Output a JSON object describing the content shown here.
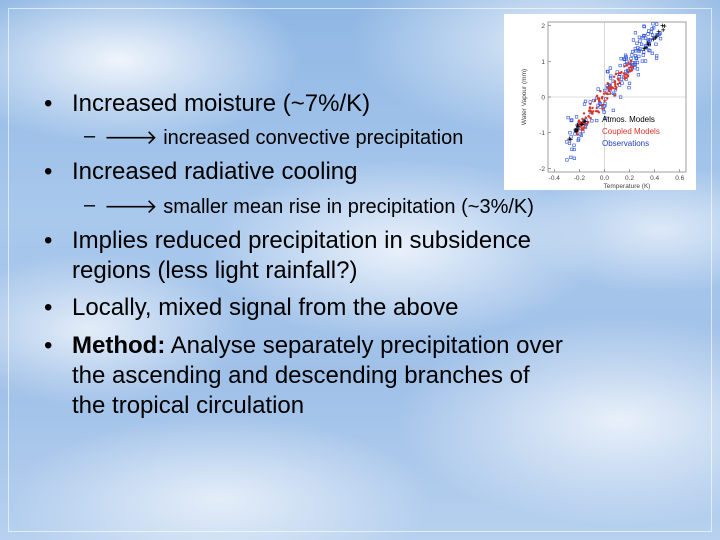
{
  "bullets": [
    {
      "text": "Increased moisture (~7%/K)"
    },
    {
      "sub": "increased convective precipitation"
    },
    {
      "text": "Increased radiative cooling"
    },
    {
      "sub": "smaller mean rise in precipitation (~3%/K)"
    },
    {
      "text_lines": [
        "Implies reduced precipitation in subsidence",
        "regions (less light rainfall?)"
      ]
    },
    {
      "text": "Locally, mixed signal from the above"
    },
    {
      "bold": "Method:",
      "text_lines": [
        " Analyse separately precipitation over",
        "the ascending and descending branches of",
        "the tropical circulation"
      ]
    }
  ],
  "chart_data": {
    "type": "scatter",
    "xlabel": "Temperature (K)",
    "ylabel": "Water Vapour (mm)",
    "x_ticks": [
      "-0.4",
      "-0.2",
      "0.0",
      "0.2",
      "0.4",
      "0.6"
    ],
    "y_ticks": [
      "-2",
      "-1",
      "0",
      "1",
      "2"
    ],
    "xlim": [
      -0.45,
      0.65
    ],
    "ylim": [
      -2.1,
      2.1
    ],
    "legend": [
      {
        "label": "Atmos. Models",
        "color": "#000000"
      },
      {
        "label": "Coupled Models",
        "color": "#d9342a"
      },
      {
        "label": "Observations",
        "color": "#1f3fbf"
      }
    ],
    "legend_position": "bottom-right",
    "colors": {
      "atmos": "#000000",
      "coupled": "#d9342a",
      "observations": "#2a4fd6"
    }
  }
}
